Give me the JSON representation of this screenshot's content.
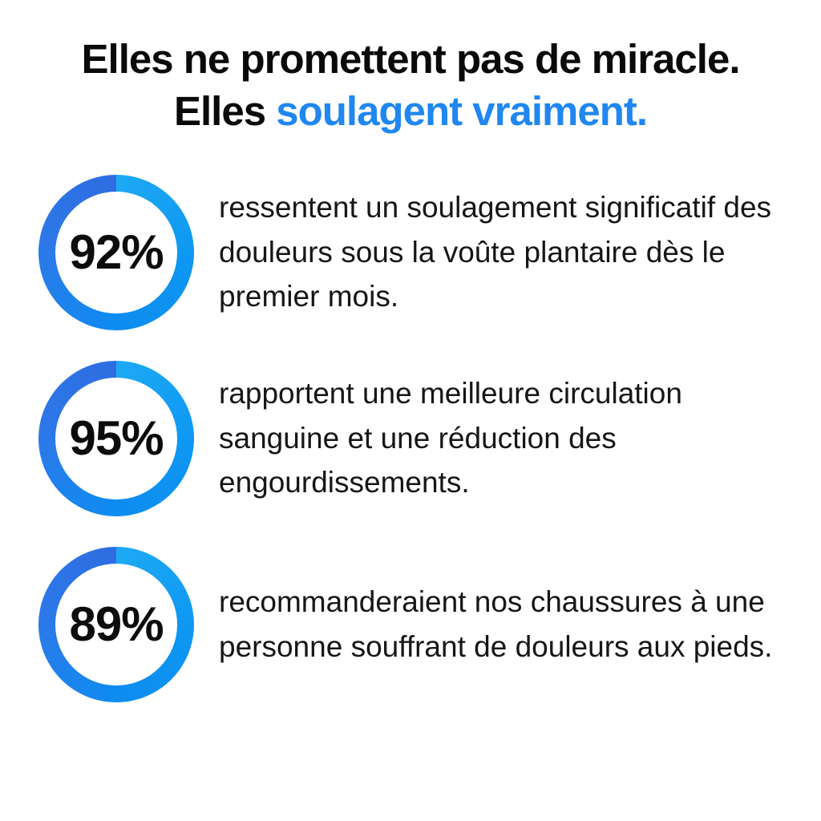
{
  "headline": {
    "line1": "Elles ne promettent pas de miracle.",
    "line2_black": "Elles ",
    "line2_accent": "soulagent vraiment."
  },
  "colors": {
    "accent_blue": "#1f87ef",
    "ring_gradient_start": "#1ea9f4",
    "ring_gradient_mid": "#0e8cf0",
    "ring_gradient_end": "#2f6ce2",
    "text_black": "#0a0a0a",
    "background": "#ffffff"
  },
  "stats": [
    {
      "value": "92%",
      "text": "ressentent un soulagement significatif des douleurs sous la voûte plantaire dès le premier mois."
    },
    {
      "value": "95%",
      "text": "rapportent une meilleure circulation sanguine et une réduction des engourdissements."
    },
    {
      "value": "89%",
      "text": "recommanderaient nos chaussures à une personne souffrant de douleurs aux pieds."
    }
  ],
  "chart_data": {
    "type": "pie",
    "style": "donut-percentage-rings",
    "title": "Elles ne promettent pas de miracle. Elles soulagent vraiment.",
    "legend_position": "right-of-each-ring",
    "items": [
      {
        "value": 92,
        "unit": "%",
        "label": "ressentent un soulagement significatif des douleurs sous la voûte plantaire dès le premier mois."
      },
      {
        "value": 95,
        "unit": "%",
        "label": "rapportent une meilleure circulation sanguine et une réduction des engourdissements."
      },
      {
        "value": 89,
        "unit": "%",
        "label": "recommanderaient nos chaussures à une personne souffrant de douleurs aux pieds."
      }
    ]
  }
}
